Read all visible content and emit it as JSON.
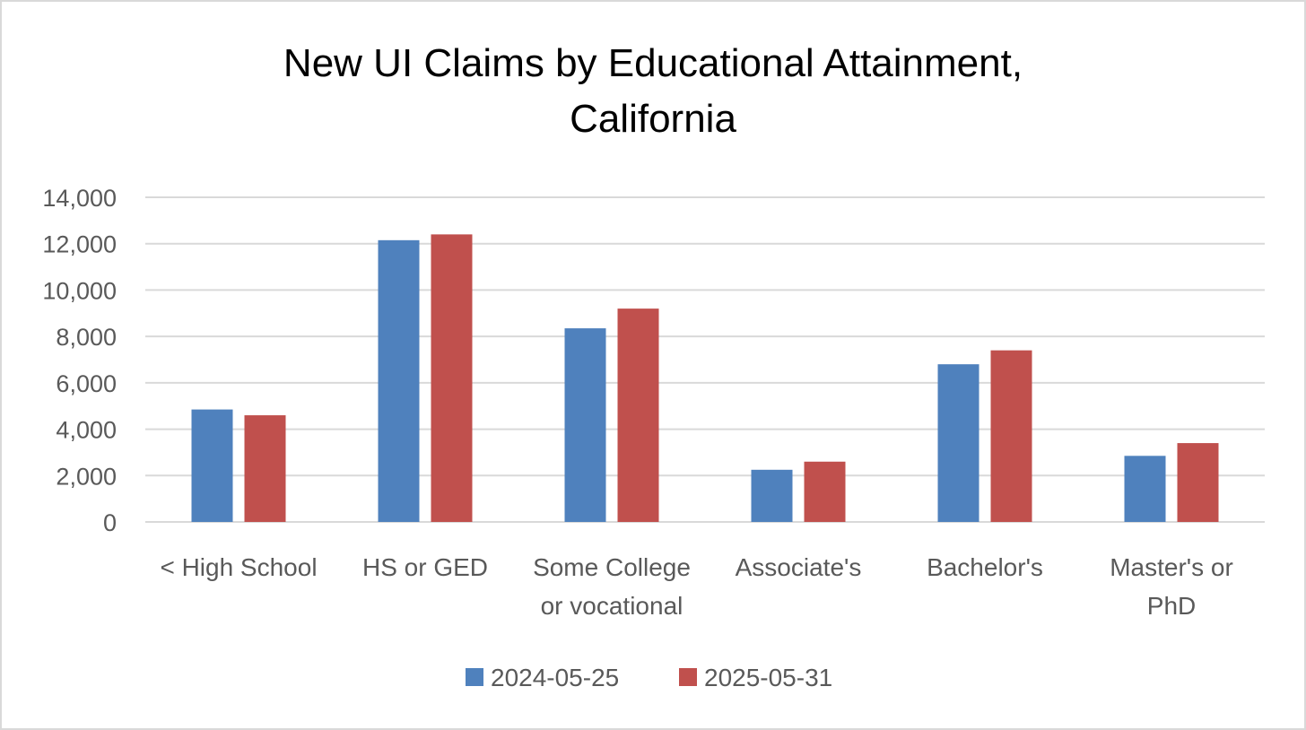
{
  "chart_data": {
    "type": "bar",
    "title_lines": [
      "New UI Claims by Educational Attainment,",
      "California"
    ],
    "categories": [
      "< High School",
      "HS or GED",
      "Some College or vocational",
      "Associate's",
      "Bachelor's",
      "Master's or PhD"
    ],
    "category_lines": [
      [
        "< High School"
      ],
      [
        "HS or GED"
      ],
      [
        "Some College",
        "or vocational"
      ],
      [
        "Associate's"
      ],
      [
        "Bachelor's"
      ],
      [
        "Master's or",
        "PhD"
      ]
    ],
    "series": [
      {
        "name": "2024-05-25",
        "color": "#4f81bd",
        "values": [
          4850,
          12150,
          8350,
          2250,
          6800,
          2850
        ]
      },
      {
        "name": "2025-05-31",
        "color": "#c0504d",
        "values": [
          4600,
          12400,
          9200,
          2600,
          7400,
          3400
        ]
      }
    ],
    "ylim": [
      0,
      14000
    ],
    "yticks": [
      0,
      2000,
      4000,
      6000,
      8000,
      10000,
      12000,
      14000
    ],
    "ytick_labels": [
      "0",
      "2,000",
      "4,000",
      "6,000",
      "8,000",
      "10,000",
      "12,000",
      "14,000"
    ],
    "grid": true,
    "legend_position": "bottom",
    "gridline_color": "#d9d9d9"
  }
}
